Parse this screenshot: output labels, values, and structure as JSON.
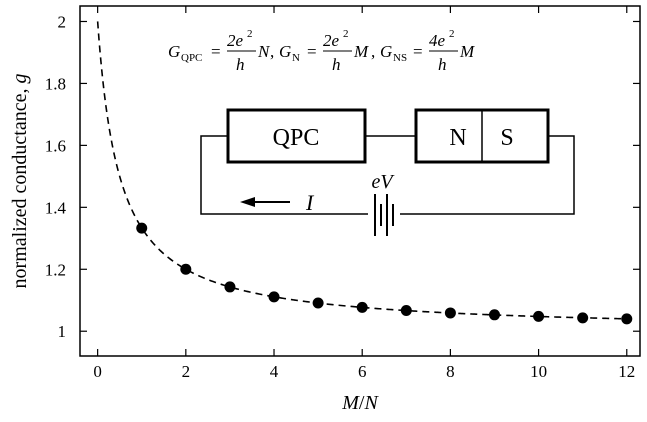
{
  "chart_data": {
    "type": "line",
    "title": "",
    "xlabel_main": "M",
    "xlabel_sep": "/",
    "xlabel_tail": "N",
    "ylabel_main": "normalized conductance,",
    "ylabel_var": "g",
    "xlim": [
      -0.4,
      12.3
    ],
    "ylim": [
      0.92,
      2.05
    ],
    "grid": false,
    "legend": "none",
    "x_ticks": [
      0,
      2,
      4,
      6,
      8,
      10,
      12
    ],
    "x_tick_labels": [
      "0",
      "2",
      "4",
      "6",
      "8",
      "10",
      "12"
    ],
    "y_ticks": [
      1.0,
      1.2,
      1.4,
      1.6,
      1.8,
      2.0
    ],
    "y_tick_labels": [
      "1",
      "1.2",
      "1.4",
      "1.6",
      "1.8",
      "2"
    ],
    "series": [
      {
        "style": "dashed-curve",
        "formula": "g = 1 + 1/(2r+1)",
        "x_range": [
          0,
          12
        ]
      },
      {
        "style": "markers",
        "x": [
          1,
          2,
          3,
          4,
          5,
          6,
          7,
          8,
          9,
          10,
          11,
          12
        ],
        "y": [
          1.333,
          1.2,
          1.143,
          1.111,
          1.091,
          1.077,
          1.067,
          1.059,
          1.053,
          1.048,
          1.043,
          1.04
        ]
      }
    ],
    "annotations": {
      "formula": {
        "g1_sym": "G",
        "g1_sub": "QPC",
        "g1_num": "2e",
        "g1_den": "h",
        "g1_tail": "N",
        "g2_sym": "G",
        "g2_sub": "N",
        "g2_num": "2e",
        "g2_den": "h",
        "g2_tail": "M",
        "g3_sym": "G",
        "g3_sub": "NS",
        "g3_num": "4e",
        "g3_den": "h",
        "g3_tail": "M",
        "eq": "=",
        "sq": "2",
        "sep": ","
      },
      "circuit": {
        "qpc_label": "QPC",
        "n_label": "N",
        "s_label": "S",
        "voltage_label": "eV",
        "current_label": "I"
      }
    }
  }
}
